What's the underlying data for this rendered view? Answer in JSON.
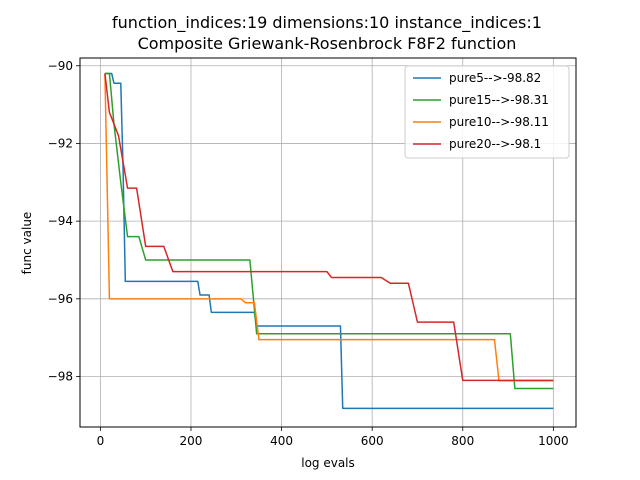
{
  "chart_data": {
    "type": "line",
    "title": "function_indices:19 dimensions:10 instance_indices:1",
    "subtitle": "Composite Griewank-Rosenbrock F8F2 function",
    "xlabel": "log evals",
    "ylabel": "func value",
    "xlim": [
      -45,
      1050
    ],
    "ylim": [
      -99.3,
      -89.8
    ],
    "xticks": [
      0,
      200,
      400,
      600,
      800,
      1000
    ],
    "xtick_labels": [
      "0",
      "200",
      "400",
      "600",
      "800",
      "1000"
    ],
    "yticks": [
      -90,
      -92,
      -94,
      -96,
      -98
    ],
    "ytick_labels": [
      "−90",
      "−92",
      "−94",
      "−96",
      "−98"
    ],
    "grid": true,
    "legend_position": "top-right",
    "series": [
      {
        "name": "pure5-->-98.82",
        "color": "#1f77b4",
        "points": [
          [
            10,
            -90.2
          ],
          [
            25,
            -90.2
          ],
          [
            30,
            -90.45
          ],
          [
            45,
            -90.45
          ],
          [
            50,
            -92.6
          ],
          [
            55,
            -95.55
          ],
          [
            215,
            -95.55
          ],
          [
            220,
            -95.9
          ],
          [
            240,
            -95.9
          ],
          [
            245,
            -96.35
          ],
          [
            340,
            -96.35
          ],
          [
            345,
            -96.7
          ],
          [
            530,
            -96.7
          ],
          [
            535,
            -98.82
          ],
          [
            1000,
            -98.82
          ]
        ]
      },
      {
        "name": "pure15-->-98.31",
        "color": "#2ca02c",
        "points": [
          [
            10,
            -90.2
          ],
          [
            20,
            -90.2
          ],
          [
            30,
            -91.5
          ],
          [
            45,
            -93.0
          ],
          [
            60,
            -94.4
          ],
          [
            85,
            -94.4
          ],
          [
            100,
            -95.0
          ],
          [
            330,
            -95.0
          ],
          [
            345,
            -96.9
          ],
          [
            905,
            -96.9
          ],
          [
            915,
            -98.31
          ],
          [
            1000,
            -98.31
          ]
        ]
      },
      {
        "name": "pure10-->-98.11",
        "color": "#ff7f0e",
        "points": [
          [
            10,
            -90.2
          ],
          [
            20,
            -96.0
          ],
          [
            310,
            -96.0
          ],
          [
            320,
            -96.1
          ],
          [
            340,
            -96.1
          ],
          [
            350,
            -97.05
          ],
          [
            870,
            -97.05
          ],
          [
            880,
            -98.11
          ],
          [
            1000,
            -98.11
          ]
        ]
      },
      {
        "name": "pure20-->-98.1",
        "color": "#d62728",
        "points": [
          [
            10,
            -90.2
          ],
          [
            20,
            -91.2
          ],
          [
            40,
            -91.8
          ],
          [
            60,
            -93.15
          ],
          [
            80,
            -93.15
          ],
          [
            100,
            -94.65
          ],
          [
            140,
            -94.65
          ],
          [
            160,
            -95.3
          ],
          [
            500,
            -95.3
          ],
          [
            510,
            -95.45
          ],
          [
            620,
            -95.45
          ],
          [
            640,
            -95.6
          ],
          [
            680,
            -95.6
          ],
          [
            700,
            -96.6
          ],
          [
            780,
            -96.6
          ],
          [
            800,
            -98.1
          ],
          [
            1000,
            -98.1
          ]
        ]
      }
    ]
  }
}
